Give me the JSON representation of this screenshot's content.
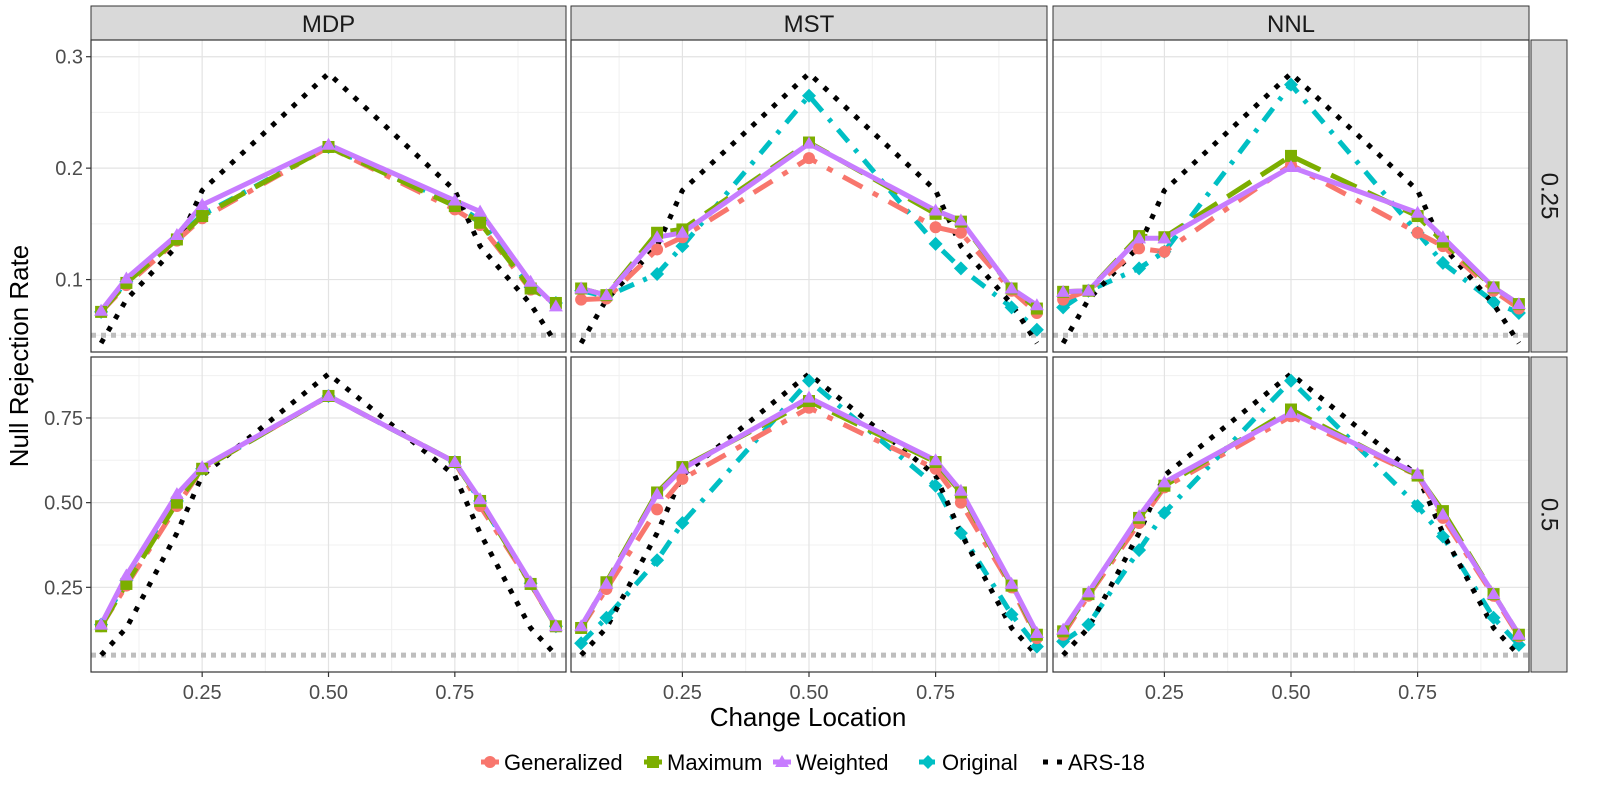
{
  "chart_data": {
    "type": "line",
    "xlabel": "Change Location",
    "ylabel": "Null Rejection Rate",
    "x": [
      0.05,
      0.1,
      0.2,
      0.25,
      0.5,
      0.75,
      0.8,
      0.9,
      0.95
    ],
    "x_ticks": [
      0.25,
      0.5,
      0.75
    ],
    "x_tick_labels": [
      "0.25",
      "0.50",
      "0.75"
    ],
    "xlim": [
      0.03,
      0.97
    ],
    "nominal_level": 0.05,
    "columns": [
      "MDP",
      "MST",
      "NNL"
    ],
    "rows": [
      {
        "label": "0.25",
        "ylim": [
          0.035,
          0.315
        ],
        "y_ticks": [
          0.1,
          0.2,
          0.3
        ],
        "y_tick_labels": [
          "0.1",
          "0.2",
          "0.3"
        ]
      },
      {
        "label": "0.5",
        "ylim": [
          0.0,
          0.93
        ],
        "y_ticks": [
          0.25,
          0.5,
          0.75
        ],
        "y_tick_labels": [
          "0.25",
          "0.50",
          "0.75"
        ]
      }
    ],
    "legend": [
      {
        "name": "Generalized",
        "color": "#F8766D",
        "shape": "circle"
      },
      {
        "name": "Maximum",
        "color": "#7CAE00",
        "shape": "square"
      },
      {
        "name": "Weighted",
        "color": "#C77CFF",
        "shape": "triangle"
      },
      {
        "name": "Original",
        "color": "#00BFC4",
        "shape": "diamond"
      },
      {
        "name": "ARS-18",
        "color": "#000000",
        "shape": "none"
      }
    ],
    "panels": [
      {
        "row": 0,
        "col": 0,
        "series": {
          "Generalized": [
            0.071,
            0.095,
            0.135,
            0.155,
            0.219,
            0.163,
            0.149,
            0.091,
            0.079
          ],
          "Maximum": [
            0.071,
            0.097,
            0.136,
            0.157,
            0.219,
            0.166,
            0.151,
            0.092,
            0.079
          ],
          "Weighted": [
            0.072,
            0.101,
            0.14,
            0.167,
            0.221,
            0.171,
            0.161,
            0.098,
            0.076
          ],
          "Original": [
            0.071,
            0.098,
            0.137,
            0.158,
            0.219,
            0.168,
            0.153,
            0.093,
            0.079
          ],
          "ARS-18": [
            0.043,
            0.082,
            0.13,
            0.18,
            0.285,
            0.18,
            0.13,
            0.078,
            0.043
          ]
        }
      },
      {
        "row": 0,
        "col": 1,
        "series": {
          "Generalized": [
            0.082,
            0.083,
            0.127,
            0.138,
            0.209,
            0.147,
            0.142,
            0.09,
            0.07
          ],
          "Maximum": [
            0.092,
            0.086,
            0.142,
            0.145,
            0.223,
            0.159,
            0.152,
            0.092,
            0.074
          ],
          "Weighted": [
            0.092,
            0.086,
            0.138,
            0.142,
            0.222,
            0.162,
            0.153,
            0.092,
            0.077
          ],
          "Original": [
            0.09,
            0.085,
            0.105,
            0.13,
            0.265,
            0.132,
            0.11,
            0.075,
            0.055
          ],
          "ARS-18": [
            0.043,
            0.082,
            0.13,
            0.18,
            0.285,
            0.18,
            0.13,
            0.078,
            0.043
          ]
        }
      },
      {
        "row": 0,
        "col": 2,
        "series": {
          "Generalized": [
            0.082,
            0.09,
            0.128,
            0.125,
            0.203,
            0.142,
            0.13,
            0.09,
            0.074
          ],
          "Maximum": [
            0.089,
            0.09,
            0.139,
            0.138,
            0.211,
            0.157,
            0.134,
            0.093,
            0.078
          ],
          "Weighted": [
            0.089,
            0.09,
            0.137,
            0.137,
            0.201,
            0.16,
            0.138,
            0.093,
            0.078
          ],
          "Original": [
            0.075,
            0.09,
            0.11,
            0.125,
            0.275,
            0.142,
            0.115,
            0.08,
            0.07
          ],
          "ARS-18": [
            0.043,
            0.082,
            0.13,
            0.18,
            0.285,
            0.18,
            0.13,
            0.078,
            0.043
          ]
        }
      },
      {
        "row": 1,
        "col": 0,
        "series": {
          "Generalized": [
            0.135,
            0.255,
            0.49,
            0.6,
            0.815,
            0.62,
            0.49,
            0.26,
            0.135
          ],
          "Maximum": [
            0.135,
            0.26,
            0.5,
            0.6,
            0.815,
            0.62,
            0.505,
            0.26,
            0.135
          ],
          "Weighted": [
            0.14,
            0.285,
            0.525,
            0.605,
            0.815,
            0.62,
            0.51,
            0.265,
            0.135
          ],
          "Original": [
            0.14,
            0.27,
            0.505,
            0.6,
            0.815,
            0.62,
            0.505,
            0.262,
            0.135
          ],
          "ARS-18": [
            0.05,
            0.13,
            0.41,
            0.58,
            0.88,
            0.58,
            0.41,
            0.13,
            0.05
          ]
        }
      },
      {
        "row": 1,
        "col": 1,
        "series": {
          "Generalized": [
            0.13,
            0.245,
            0.48,
            0.57,
            0.78,
            0.6,
            0.5,
            0.25,
            0.1
          ],
          "Maximum": [
            0.13,
            0.265,
            0.53,
            0.605,
            0.8,
            0.62,
            0.53,
            0.255,
            0.11
          ],
          "Weighted": [
            0.135,
            0.26,
            0.525,
            0.6,
            0.81,
            0.625,
            0.535,
            0.26,
            0.115
          ],
          "Original": [
            0.085,
            0.16,
            0.33,
            0.44,
            0.86,
            0.55,
            0.41,
            0.17,
            0.075
          ],
          "ARS-18": [
            0.05,
            0.13,
            0.41,
            0.58,
            0.88,
            0.58,
            0.41,
            0.13,
            0.05
          ]
        }
      },
      {
        "row": 1,
        "col": 2,
        "series": {
          "Generalized": [
            0.11,
            0.225,
            0.44,
            0.545,
            0.755,
            0.58,
            0.455,
            0.225,
            0.105
          ],
          "Maximum": [
            0.12,
            0.23,
            0.455,
            0.55,
            0.775,
            0.58,
            0.475,
            0.23,
            0.11
          ],
          "Weighted": [
            0.125,
            0.235,
            0.46,
            0.56,
            0.765,
            0.585,
            0.465,
            0.23,
            0.11
          ],
          "Original": [
            0.09,
            0.14,
            0.36,
            0.47,
            0.86,
            0.49,
            0.4,
            0.16,
            0.08
          ],
          "ARS-18": [
            0.05,
            0.13,
            0.41,
            0.58,
            0.88,
            0.58,
            0.41,
            0.13,
            0.05
          ]
        }
      }
    ]
  }
}
